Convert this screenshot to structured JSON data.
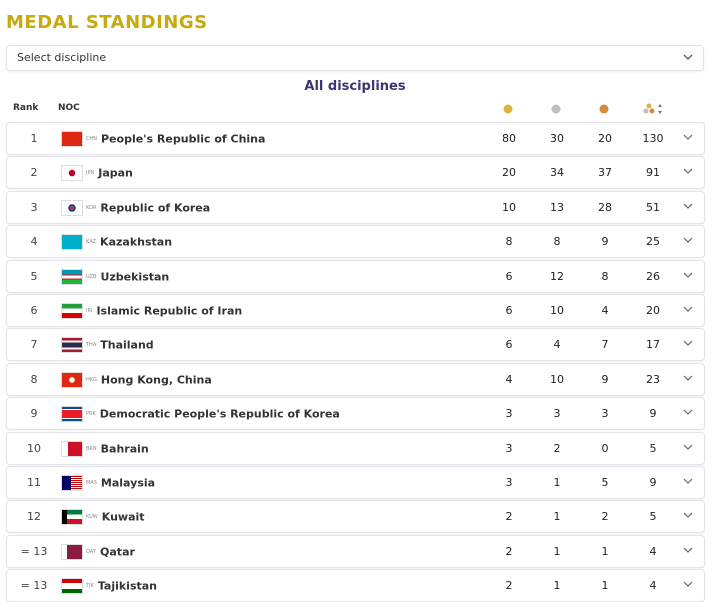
{
  "header": {
    "title": "MEDAL STANDINGS",
    "select_placeholder": "Select discipline",
    "subtitle": "All disciplines"
  },
  "table": {
    "columns": [
      "Rank",
      "NOC"
    ],
    "rows": [
      [
        "1",
        "CHN",
        "People's Republic of China",
        80,
        30,
        20,
        130
      ],
      [
        "2",
        "JPN",
        "Japan",
        20,
        34,
        37,
        91
      ],
      [
        "3",
        "KOR",
        "Republic of Korea",
        10,
        13,
        28,
        51
      ],
      [
        "4",
        "KAZ",
        "Kazakhstan",
        8,
        8,
        9,
        25
      ],
      [
        "5",
        "UZB",
        "Uzbekistan",
        6,
        12,
        8,
        26
      ],
      [
        "6",
        "IRI",
        "Islamic Republic of Iran",
        6,
        10,
        4,
        20
      ],
      [
        "7",
        "THA",
        "Thailand",
        6,
        4,
        7,
        17
      ],
      [
        "8",
        "HKG",
        "Hong Kong, China",
        4,
        10,
        9,
        23
      ],
      [
        "9",
        "PRK",
        "Democratic People's Republic of Korea",
        3,
        3,
        3,
        9
      ],
      [
        "10",
        "BRN",
        "Bahrain",
        3,
        2,
        0,
        5
      ],
      [
        "11",
        "MAS",
        "Malaysia",
        3,
        1,
        5,
        9
      ],
      [
        "12",
        "KUW",
        "Kuwait",
        2,
        1,
        2,
        5
      ],
      [
        "= 13",
        "QAT",
        "Qatar",
        2,
        1,
        1,
        4
      ],
      [
        "= 13",
        "TJK",
        "Tajikistan",
        2,
        1,
        1,
        4
      ]
    ]
  }
}
